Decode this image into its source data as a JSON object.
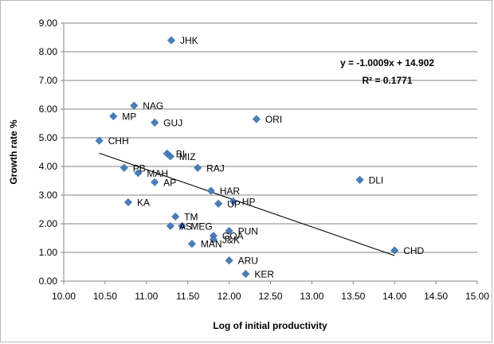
{
  "chart_data": {
    "type": "scatter",
    "xlabel": "Log of initial productivity",
    "ylabel": "Growth rate %",
    "xlim": [
      10.0,
      15.0
    ],
    "ylim": [
      0.0,
      9.0
    ],
    "x_ticks": [
      "10.00",
      "10.50",
      "11.00",
      "11.50",
      "12.00",
      "12.50",
      "13.00",
      "13.50",
      "14.00",
      "14.50",
      "15.00"
    ],
    "y_ticks": [
      "0.00",
      "1.00",
      "2.00",
      "3.00",
      "4.00",
      "5.00",
      "6.00",
      "7.00",
      "8.00",
      "9.00"
    ],
    "grid": "horizontal",
    "marker_color": "#4a7ebb",
    "points": [
      {
        "label": "JHK",
        "x": 11.3,
        "y": 8.4
      },
      {
        "label": "NAG",
        "x": 10.85,
        "y": 6.12
      },
      {
        "label": "MP",
        "x": 10.6,
        "y": 5.75
      },
      {
        "label": "GUJ",
        "x": 11.1,
        "y": 5.53
      },
      {
        "label": "ORI",
        "x": 12.33,
        "y": 5.65
      },
      {
        "label": "CHH",
        "x": 10.43,
        "y": 4.9
      },
      {
        "label": "BI",
        "x": 11.25,
        "y": 4.45
      },
      {
        "label": "MIZ",
        "x": 11.29,
        "y": 4.35
      },
      {
        "label": "PB",
        "x": 10.73,
        "y": 3.95
      },
      {
        "label": "MAH",
        "x": 10.9,
        "y": 3.77
      },
      {
        "label": "RAJ",
        "x": 11.62,
        "y": 3.95
      },
      {
        "label": "AP",
        "x": 11.1,
        "y": 3.45
      },
      {
        "label": "DLI",
        "x": 13.58,
        "y": 3.53
      },
      {
        "label": "HAR",
        "x": 11.78,
        "y": 3.15
      },
      {
        "label": "HP",
        "x": 12.05,
        "y": 2.78
      },
      {
        "label": "UP",
        "x": 11.87,
        "y": 2.7
      },
      {
        "label": "KA",
        "x": 10.78,
        "y": 2.75
      },
      {
        "label": "TM",
        "x": 11.35,
        "y": 2.25
      },
      {
        "label": "AS",
        "x": 11.29,
        "y": 1.92
      },
      {
        "label": "MEG",
        "x": 11.43,
        "y": 1.92
      },
      {
        "label": "PUN",
        "x": 12.0,
        "y": 1.75
      },
      {
        "label": "GOA",
        "x": 11.81,
        "y": 1.58
      },
      {
        "label": "J&K",
        "x": 11.81,
        "y": 1.45
      },
      {
        "label": "MAN",
        "x": 11.55,
        "y": 1.3
      },
      {
        "label": "CHD",
        "x": 14.0,
        "y": 1.07
      },
      {
        "label": "ARU",
        "x": 12.0,
        "y": 0.72
      },
      {
        "label": "KER",
        "x": 12.2,
        "y": 0.25
      }
    ],
    "trendline": {
      "slope": -1.0009,
      "intercept": 14.902,
      "x_start": 10.43,
      "x_end": 14.0
    },
    "annotations": [
      "y = -1.0009x + 14.902",
      "R² = 0.1771"
    ]
  }
}
